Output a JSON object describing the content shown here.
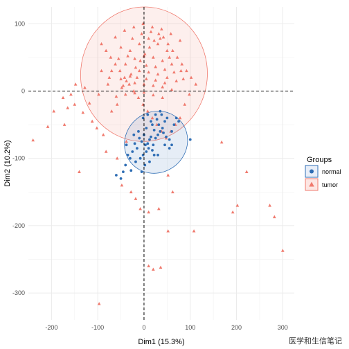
{
  "chart_data": {
    "type": "scatter",
    "xlabel": "Dim1 (15.3%)",
    "ylabel": "Dim2 (10.2%)",
    "xlim": [
      -250,
      325
    ],
    "ylim": [
      -340,
      125
    ],
    "xticks": [
      -200,
      -100,
      0,
      100,
      200,
      300
    ],
    "xtick_labels": [
      "-200",
      "-100",
      "0",
      "100",
      "200",
      "300"
    ],
    "yticks": [
      100,
      0,
      -100,
      -200,
      -300
    ],
    "ytick_labels": [
      "100",
      "0",
      "-100",
      "-200",
      "-300"
    ],
    "grid": true,
    "reference_lines": {
      "x": 0,
      "y": 0,
      "style": "dashed"
    },
    "legend": {
      "title": "Groups",
      "position": "right"
    },
    "colors": {
      "normal": "#2E6DB4",
      "tumor": "#F07A6E"
    },
    "series": [
      {
        "name": "normal",
        "marker": "circle",
        "ellipse": {
          "cx": 26,
          "cy": -76,
          "rx": 70,
          "ry": 45,
          "angle_deg": 38
        },
        "points": [
          [
            -5,
            -75
          ],
          [
            3,
            -80
          ],
          [
            8,
            -78
          ],
          [
            12,
            -72
          ],
          [
            -10,
            -70
          ],
          [
            0,
            -65
          ],
          [
            15,
            -68
          ],
          [
            20,
            -80
          ],
          [
            -15,
            -85
          ],
          [
            5,
            -90
          ],
          [
            10,
            -85
          ],
          [
            -20,
            -78
          ],
          [
            25,
            -70
          ],
          [
            30,
            -65
          ],
          [
            35,
            -60
          ],
          [
            40,
            -55
          ],
          [
            45,
            -45
          ],
          [
            50,
            -40
          ],
          [
            38,
            -35
          ],
          [
            28,
            -42
          ],
          [
            18,
            -50
          ],
          [
            22,
            -58
          ],
          [
            32,
            -50
          ],
          [
            42,
            -62
          ],
          [
            48,
            -68
          ],
          [
            55,
            -72
          ],
          [
            60,
            -60
          ],
          [
            65,
            -50
          ],
          [
            70,
            -40
          ],
          [
            75,
            -45
          ],
          [
            -25,
            -90
          ],
          [
            -30,
            -100
          ],
          [
            -35,
            -95
          ],
          [
            -40,
            -110
          ],
          [
            -45,
            -120
          ],
          [
            -50,
            -130
          ],
          [
            -28,
            -118
          ],
          [
            -18,
            -105
          ],
          [
            -8,
            -100
          ],
          [
            2,
            -110
          ],
          [
            12,
            -105
          ],
          [
            22,
            -95
          ],
          [
            -12,
            -60
          ],
          [
            -22,
            -65
          ],
          [
            5,
            -55
          ],
          [
            15,
            -45
          ],
          [
            25,
            -35
          ],
          [
            35,
            -30
          ],
          [
            -2,
            -40
          ],
          [
            8,
            -35
          ],
          [
            60,
            -80
          ],
          [
            100,
            -72
          ],
          [
            -60,
            -125
          ],
          [
            -5,
            -120
          ],
          [
            45,
            -80
          ],
          [
            55,
            -85
          ],
          [
            -38,
            -80
          ],
          [
            18,
            -88
          ],
          [
            -2,
            -95
          ],
          [
            30,
            -95
          ]
        ]
      },
      {
        "name": "tumor",
        "marker": "triangle",
        "ellipse": {
          "cx": 0,
          "cy": 25,
          "rx": 137,
          "ry": 100,
          "angle_deg": -5
        },
        "points": [
          [
            -240,
            -73
          ],
          [
            -208,
            -53
          ],
          [
            -140,
            -120
          ],
          [
            -97,
            -316
          ],
          [
            -150,
            -20
          ],
          [
            -195,
            -30
          ],
          [
            -175,
            -10
          ],
          [
            -165,
            -25
          ],
          [
            -118,
            -18
          ],
          [
            -132,
            -32
          ],
          [
            -112,
            -45
          ],
          [
            -102,
            -55
          ],
          [
            -88,
            -65
          ],
          [
            -82,
            -90
          ],
          [
            -58,
            -100
          ],
          [
            -48,
            -140
          ],
          [
            -38,
            -75
          ],
          [
            -28,
            -150
          ],
          [
            -18,
            -160
          ],
          [
            -8,
            -175
          ],
          [
            10,
            -180
          ],
          [
            32,
            -175
          ],
          [
            52,
            -125
          ],
          [
            62,
            -150
          ],
          [
            52,
            -208
          ],
          [
            108,
            -208
          ],
          [
            168,
            -76
          ],
          [
            202,
            -170
          ],
          [
            192,
            -180
          ],
          [
            222,
            -120
          ],
          [
            272,
            -170
          ],
          [
            282,
            -187
          ],
          [
            300,
            -237
          ],
          [
            20,
            -265
          ],
          [
            36,
            -262
          ],
          [
            10,
            -260
          ],
          [
            -172,
            -50
          ],
          [
            -158,
            -5
          ],
          [
            -128,
            5
          ],
          [
            -148,
            10
          ],
          [
            -98,
            -5
          ],
          [
            -78,
            10
          ],
          [
            -92,
            30
          ],
          [
            -70,
            -30
          ],
          [
            -58,
            -20
          ],
          [
            -48,
            5
          ],
          [
            -38,
            15
          ],
          [
            -28,
            25
          ],
          [
            -18,
            35
          ],
          [
            -8,
            45
          ],
          [
            2,
            55
          ],
          [
            12,
            65
          ],
          [
            22,
            75
          ],
          [
            32,
            85
          ],
          [
            42,
            80
          ],
          [
            52,
            70
          ],
          [
            62,
            60
          ],
          [
            72,
            50
          ],
          [
            82,
            40
          ],
          [
            92,
            30
          ],
          [
            102,
            20
          ],
          [
            112,
            10
          ],
          [
            98,
            -5
          ],
          [
            88,
            -20
          ],
          [
            78,
            -40
          ],
          [
            68,
            -50
          ],
          [
            58,
            -60
          ],
          [
            48,
            -70
          ],
          [
            38,
            -60
          ],
          [
            28,
            -50
          ],
          [
            18,
            -40
          ],
          [
            8,
            -30
          ],
          [
            -2,
            -20
          ],
          [
            -12,
            -10
          ],
          [
            -22,
            0
          ],
          [
            -32,
            10
          ],
          [
            -42,
            20
          ],
          [
            -52,
            30
          ],
          [
            -62,
            40
          ],
          [
            -72,
            50
          ],
          [
            -82,
            60
          ],
          [
            -92,
            70
          ],
          [
            -62,
            80
          ],
          [
            -42,
            90
          ],
          [
            -22,
            95
          ],
          [
            -2,
            100
          ],
          [
            18,
            95
          ],
          [
            38,
            92
          ],
          [
            58,
            85
          ],
          [
            78,
            75
          ],
          [
            -30,
            60
          ],
          [
            -10,
            70
          ],
          [
            10,
            78
          ],
          [
            30,
            70
          ],
          [
            50,
            60
          ],
          [
            -50,
            65
          ],
          [
            -70,
            30
          ],
          [
            -40,
            40
          ],
          [
            -20,
            48
          ],
          [
            0,
            52
          ],
          [
            20,
            50
          ],
          [
            40,
            45
          ],
          [
            60,
            40
          ],
          [
            80,
            30
          ],
          [
            -10,
            30
          ],
          [
            10,
            28
          ],
          [
            30,
            25
          ],
          [
            50,
            20
          ],
          [
            70,
            15
          ],
          [
            -30,
            22
          ],
          [
            -50,
            18
          ],
          [
            -20,
            12
          ],
          [
            0,
            10
          ],
          [
            20,
            8
          ],
          [
            40,
            6
          ],
          [
            60,
            2
          ],
          [
            -60,
            -8
          ],
          [
            -40,
            -5
          ],
          [
            -20,
            -3
          ],
          [
            0,
            -2
          ],
          [
            20,
            -6
          ],
          [
            40,
            -10
          ],
          [
            -5,
            85
          ],
          [
            15,
            88
          ],
          [
            -25,
            78
          ],
          [
            35,
            78
          ],
          [
            55,
            50
          ],
          [
            -35,
            52
          ],
          [
            -55,
            48
          ],
          [
            5,
            38
          ],
          [
            25,
            36
          ],
          [
            45,
            32
          ],
          [
            -15,
            20
          ],
          [
            5,
            18
          ],
          [
            25,
            16
          ],
          [
            45,
            12
          ],
          [
            -45,
            8
          ],
          [
            65,
            28
          ],
          [
            85,
            18
          ],
          [
            -75,
            20
          ]
        ]
      }
    ]
  },
  "watermark": "医学和生信笔记"
}
